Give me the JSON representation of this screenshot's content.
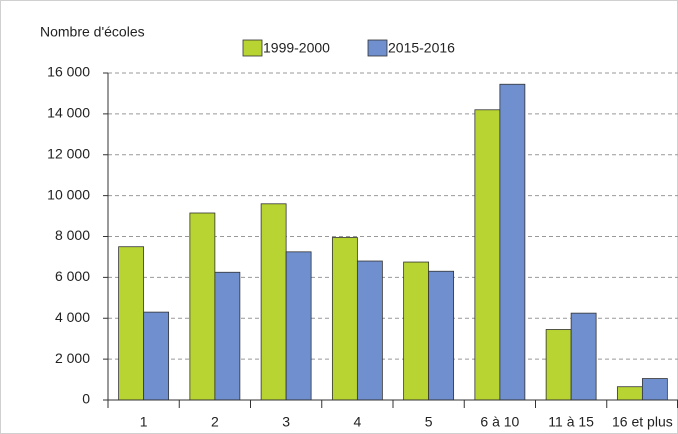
{
  "chart_data": {
    "type": "bar",
    "y_axis_label": "Nombre d'écoles",
    "categories": [
      "1",
      "2",
      "3",
      "4",
      "5",
      "6 à 10",
      "11 à 15",
      "16 et plus"
    ],
    "series": [
      {
        "name": "1999-2000",
        "color": "#b8d433",
        "values": [
          7500,
          9150,
          9600,
          7950,
          6750,
          14200,
          3450,
          650
        ]
      },
      {
        "name": "2015-2016",
        "color": "#6f8fcf",
        "values": [
          4300,
          6250,
          7250,
          6800,
          6300,
          15450,
          4250,
          1050
        ]
      }
    ],
    "ylim": [
      0,
      16000
    ],
    "yticks": [
      0,
      {
        "value": 2000,
        "label": "2 000"
      },
      {
        "value": 4000,
        "label": "4 000"
      },
      {
        "value": 6000,
        "label": "6 000"
      },
      {
        "value": 8000,
        "label": "8 000"
      },
      {
        "value": 10000,
        "label": "10 000"
      },
      {
        "value": 12000,
        "label": "12 000"
      },
      {
        "value": 14000,
        "label": "14 000"
      },
      {
        "value": 16000,
        "label": "16 000"
      }
    ],
    "grid": true
  }
}
